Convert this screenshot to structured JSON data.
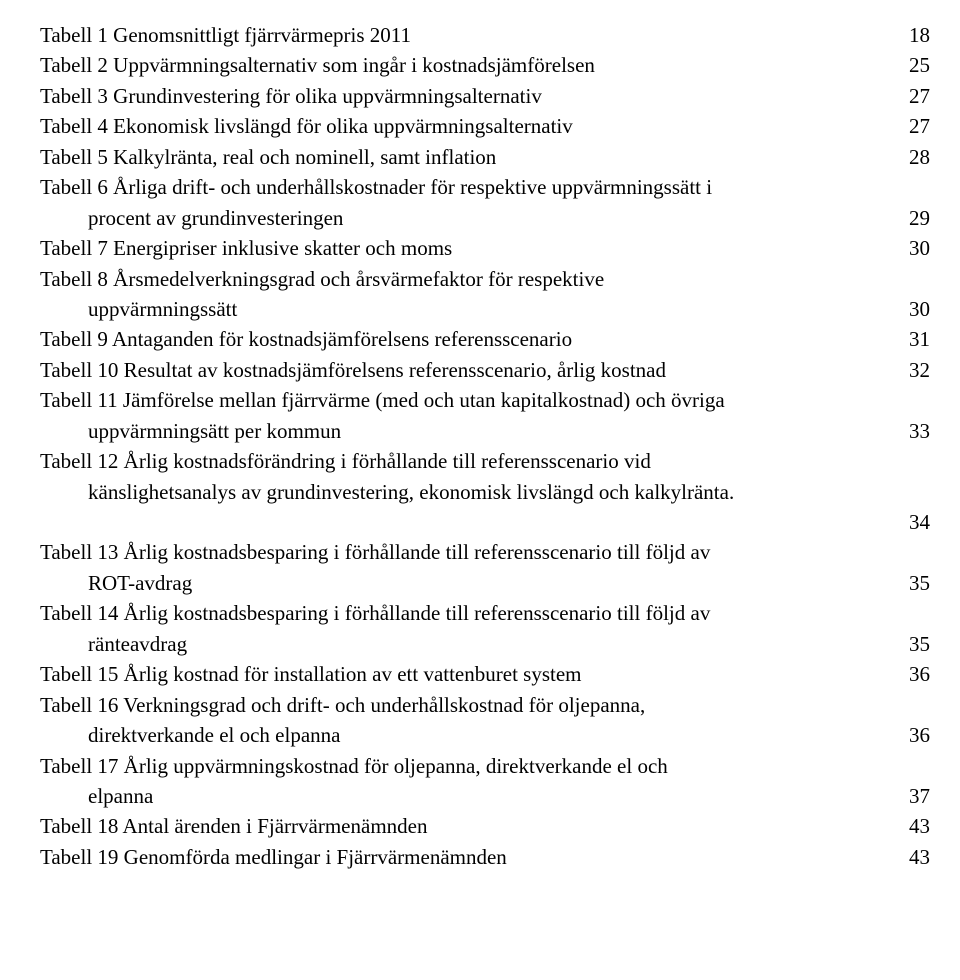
{
  "toc": [
    {
      "text": "Tabell 1 Genomsnittligt fjärrvärmepris 2011",
      "page": "18",
      "continuation": null,
      "preLeader": false
    },
    {
      "text": "Tabell 2 Uppvärmningsalternativ som ingår i kostnadsjämförelsen",
      "page": "25",
      "continuation": null,
      "preLeader": false
    },
    {
      "text": "Tabell 3 Grundinvestering för olika uppvärmningsalternativ",
      "page": "27",
      "continuation": null,
      "preLeader": false
    },
    {
      "text": "Tabell 4 Ekonomisk livslängd för olika uppvärmningsalternativ",
      "page": "27",
      "continuation": null,
      "preLeader": false
    },
    {
      "text": "Tabell 5 Kalkylränta, real och nominell, samt inflation",
      "page": "28",
      "continuation": null,
      "preLeader": false
    },
    {
      "text": "Tabell 6 Årliga drift- och underhållskostnader för respektive uppvärmningssätt i",
      "page": "29",
      "continuation": "procent av grundinvesteringen",
      "preLeader": false
    },
    {
      "text": "Tabell 7 Energipriser inklusive skatter och moms",
      "page": "30",
      "continuation": null,
      "preLeader": false
    },
    {
      "text": "Tabell 8 Årsmedelverkningsgrad och årsvärmefaktor för respektive",
      "page": "30",
      "continuation": "uppvärmningssätt",
      "preLeader": false
    },
    {
      "text": "Tabell 9 Antaganden för kostnadsjämförelsens referensscenario",
      "page": "31",
      "continuation": null,
      "preLeader": false
    },
    {
      "text": "Tabell 10 Resultat av kostnadsjämförelsens referensscenario, årlig kostnad",
      "page": "32",
      "continuation": null,
      "preLeader": false
    },
    {
      "text": "Tabell 11 Jämförelse mellan fjärrvärme (med och utan kapitalkostnad) och övriga",
      "page": "33",
      "continuation": "uppvärmningsätt  per kommun ",
      "preLeader": false
    },
    {
      "text": "Tabell 12 Årlig kostnadsförändring i förhållande till referensscenario vid",
      "page": "34",
      "continuation": "känslighetsanalys av grundinvestering, ekonomisk livslängd och kalkylränta.",
      "preLeader": true
    },
    {
      "text": "Tabell 13 Årlig kostnadsbesparing i förhållande till referensscenario till följd av",
      "page": "35",
      "continuation": "ROT-avdrag",
      "preLeader": false
    },
    {
      "text": "Tabell 14 Årlig kostnadsbesparing i förhållande till referensscenario till följd av",
      "page": "35",
      "continuation": "ränteavdrag",
      "preLeader": false
    },
    {
      "text": "Tabell 15 Årlig kostnad för installation av ett vattenburet system ",
      "page": "36",
      "continuation": null,
      "preLeader": false
    },
    {
      "text": "Tabell 16 Verkningsgrad och drift- och underhållskostnad för oljepanna,",
      "page": "36",
      "continuation": "direktverkande el och elpanna",
      "preLeader": false
    },
    {
      "text": "Tabell 17 Årlig uppvärmningskostnad för oljepanna, direktverkande el och",
      "page": "37",
      "continuation": "elpanna",
      "preLeader": false
    },
    {
      "text": "Tabell 18 Antal ärenden i Fjärrvärmenämnden",
      "page": "43",
      "continuation": null,
      "preLeader": false
    },
    {
      "text": "Tabell 19 Genomförda medlingar i Fjärrvärmenämnden",
      "page": "43",
      "continuation": null,
      "preLeader": false
    }
  ]
}
